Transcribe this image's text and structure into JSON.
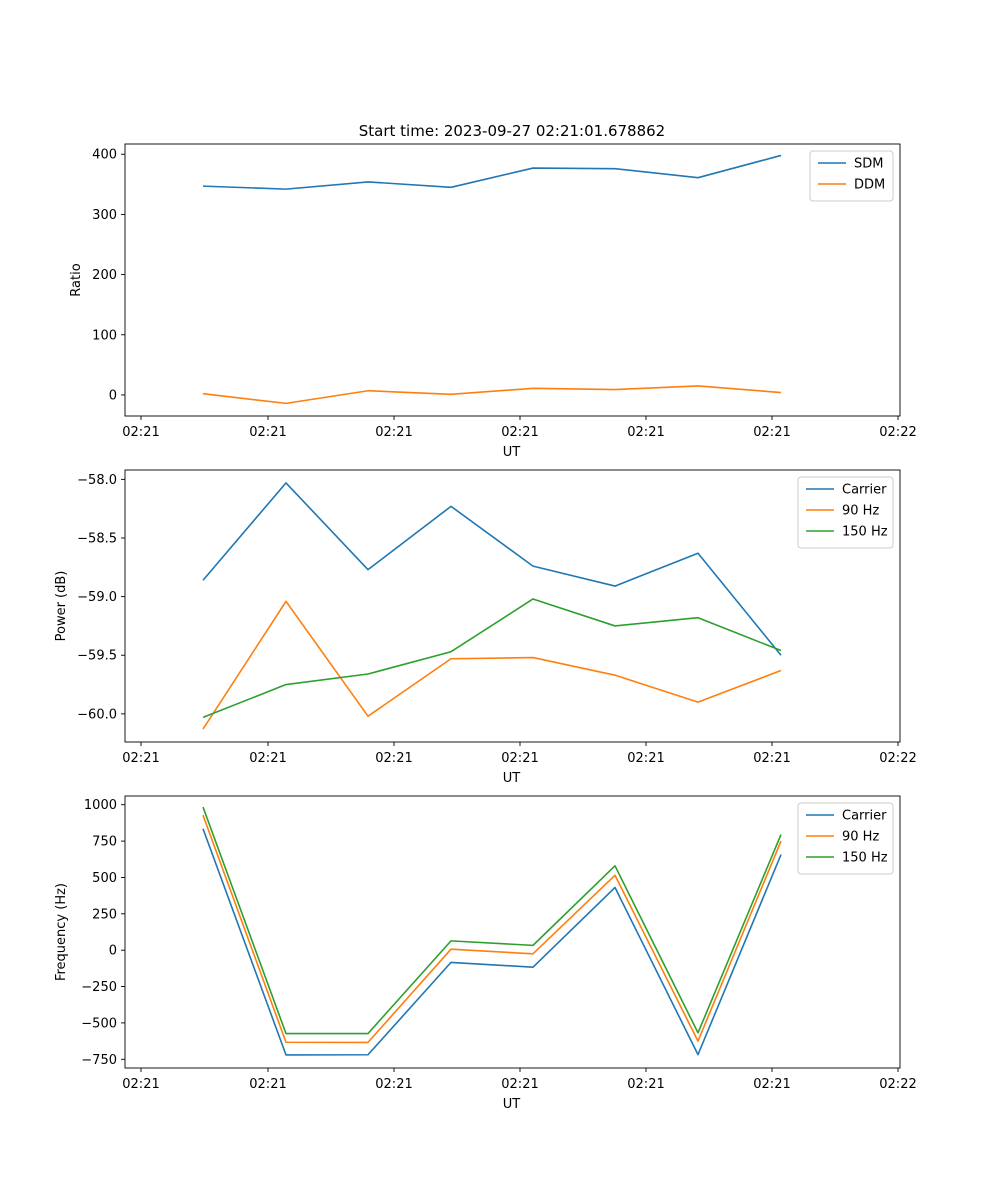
{
  "chart_data": [
    {
      "type": "line",
      "title": "Start time: 2023-09-27 02:21:01.678862",
      "xlabel": "UT",
      "ylabel": "Ratio",
      "x_tick_labels": [
        "02:21",
        "02:21",
        "02:21",
        "02:21",
        "02:21",
        "02:21",
        "02:22"
      ],
      "y_ticks": [
        0,
        100,
        200,
        300,
        400
      ],
      "ylim": [
        -35,
        417
      ],
      "legend_position": "top-right",
      "series": [
        {
          "name": "SDM",
          "color": "#1f77b4",
          "values": [
            347,
            342,
            354,
            345,
            377,
            376,
            361,
            398
          ]
        },
        {
          "name": "DDM",
          "color": "#ff7f0e",
          "values": [
            2,
            -14,
            7,
            1,
            11,
            9,
            15,
            4
          ]
        }
      ]
    },
    {
      "type": "line",
      "title": "",
      "xlabel": "UT",
      "ylabel": "Power (dB)",
      "x_tick_labels": [
        "02:21",
        "02:21",
        "02:21",
        "02:21",
        "02:21",
        "02:21",
        "02:22"
      ],
      "y_ticks": [
        -58.0,
        -58.5,
        -59.0,
        -59.5,
        -60.0
      ],
      "y_tick_labels": [
        "−58.0",
        "−58.5",
        "−59.0",
        "−59.5",
        "−60.0"
      ],
      "ylim": [
        -60.24,
        -57.92
      ],
      "legend_position": "top-right",
      "series": [
        {
          "name": "Carrier",
          "color": "#1f77b4",
          "values": [
            -58.86,
            -58.03,
            -58.77,
            -58.23,
            -58.74,
            -58.91,
            -58.63,
            -59.5
          ]
        },
        {
          "name": "90 Hz",
          "color": "#ff7f0e",
          "values": [
            -60.13,
            -59.04,
            -60.02,
            -59.53,
            -59.52,
            -59.67,
            -59.9,
            -59.63
          ]
        },
        {
          "name": "150 Hz",
          "color": "#2ca02c",
          "values": [
            -60.03,
            -59.75,
            -59.66,
            -59.47,
            -59.02,
            -59.25,
            -59.18,
            -59.46
          ]
        }
      ]
    },
    {
      "type": "line",
      "title": "",
      "xlabel": "UT",
      "ylabel": "Frequency (Hz)",
      "x_tick_labels": [
        "02:21",
        "02:21",
        "02:21",
        "02:21",
        "02:21",
        "02:21",
        "02:22"
      ],
      "y_ticks": [
        1000,
        750,
        500,
        250,
        0,
        -250,
        -500,
        -750
      ],
      "y_tick_labels": [
        "1000",
        "750",
        "500",
        "250",
        "0",
        "−250",
        "−500",
        "−750"
      ],
      "ylim": [
        -810,
        1060
      ],
      "legend_position": "top-right",
      "series": [
        {
          "name": "Carrier",
          "color": "#1f77b4",
          "values": [
            835,
            -720,
            -719,
            -84,
            -117,
            431,
            -718,
            657
          ]
        },
        {
          "name": "90 Hz",
          "color": "#ff7f0e",
          "values": [
            928,
            -633,
            -634,
            7,
            -25,
            515,
            -625,
            750
          ]
        },
        {
          "name": "150 Hz",
          "color": "#2ca02c",
          "values": [
            984,
            -573,
            -573,
            64,
            33,
            580,
            -568,
            795
          ]
        }
      ]
    }
  ]
}
